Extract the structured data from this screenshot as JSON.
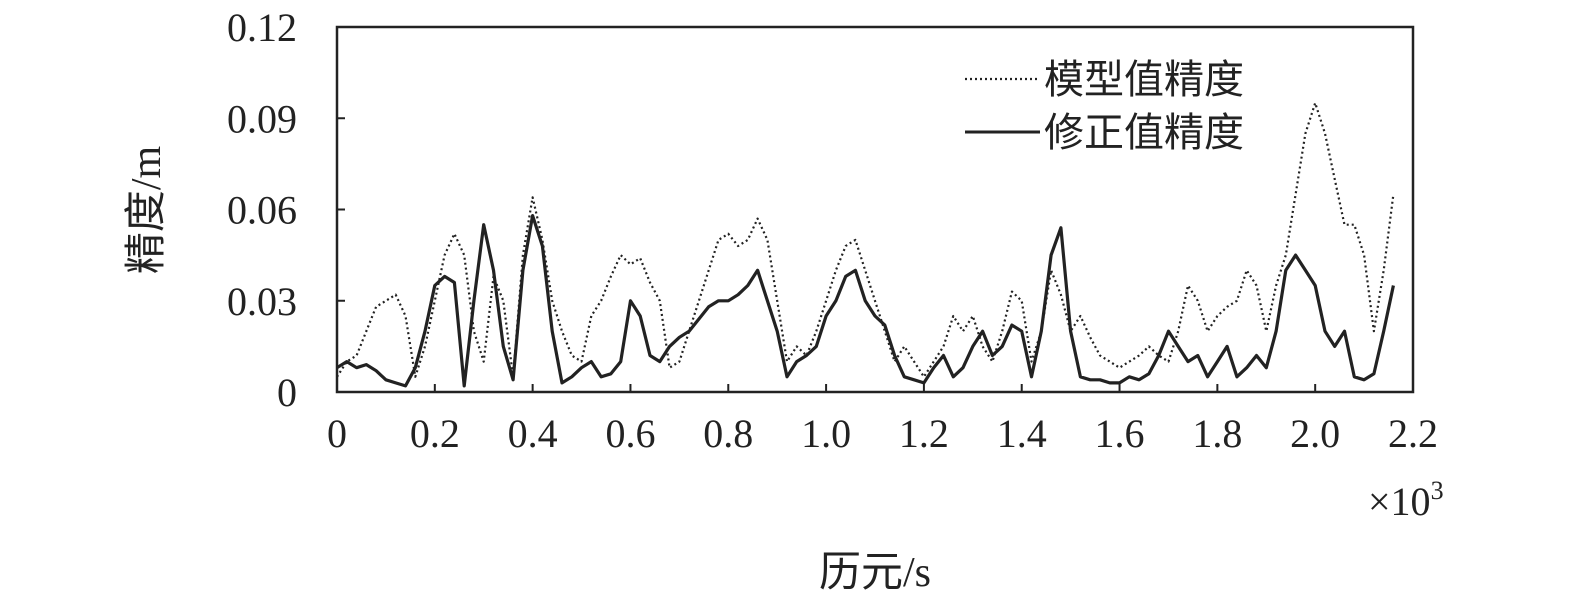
{
  "chart_data": {
    "type": "line",
    "title": "",
    "xlabel": "历元/s",
    "ylabel": "精度/m",
    "x_multiplier_label": "×10",
    "x_multiplier_exponent": "3",
    "xlim": [
      0,
      2.2
    ],
    "ylim": [
      0,
      0.12
    ],
    "x_ticks": [
      "0",
      "0.2",
      "0.4",
      "0.6",
      "0.8",
      "1.0",
      "1.2",
      "1.4",
      "1.6",
      "1.8",
      "2.0",
      "2.2"
    ],
    "y_ticks": [
      "0",
      "0.03",
      "0.06",
      "0.09",
      "0.12"
    ],
    "grid": false,
    "legend_position": "top-right",
    "x": [
      0,
      0.02,
      0.04,
      0.06,
      0.08,
      0.1,
      0.12,
      0.14,
      0.16,
      0.18,
      0.2,
      0.22,
      0.24,
      0.26,
      0.28,
      0.3,
      0.32,
      0.34,
      0.36,
      0.38,
      0.4,
      0.42,
      0.44,
      0.46,
      0.48,
      0.5,
      0.52,
      0.54,
      0.56,
      0.58,
      0.6,
      0.62,
      0.64,
      0.66,
      0.68,
      0.7,
      0.72,
      0.74,
      0.76,
      0.78,
      0.8,
      0.82,
      0.84,
      0.86,
      0.88,
      0.9,
      0.92,
      0.94,
      0.96,
      0.98,
      1.0,
      1.02,
      1.04,
      1.06,
      1.08,
      1.1,
      1.12,
      1.14,
      1.16,
      1.18,
      1.2,
      1.22,
      1.24,
      1.26,
      1.28,
      1.3,
      1.32,
      1.34,
      1.36,
      1.38,
      1.4,
      1.42,
      1.44,
      1.46,
      1.48,
      1.5,
      1.52,
      1.54,
      1.56,
      1.58,
      1.6,
      1.62,
      1.64,
      1.66,
      1.68,
      1.7,
      1.72,
      1.74,
      1.76,
      1.78,
      1.8,
      1.82,
      1.84,
      1.86,
      1.88,
      1.9,
      1.92,
      1.94,
      1.96,
      1.98,
      2.0,
      2.02,
      2.04,
      2.06,
      2.08,
      2.1,
      2.12,
      2.14,
      2.16
    ],
    "series": [
      {
        "name": "模型值精度",
        "style": "dotted",
        "color": "#222222",
        "values": [
          0.005,
          0.01,
          0.012,
          0.02,
          0.028,
          0.03,
          0.032,
          0.025,
          0.005,
          0.015,
          0.03,
          0.045,
          0.052,
          0.045,
          0.02,
          0.01,
          0.038,
          0.03,
          0.005,
          0.045,
          0.064,
          0.05,
          0.03,
          0.02,
          0.012,
          0.01,
          0.025,
          0.03,
          0.038,
          0.045,
          0.042,
          0.044,
          0.036,
          0.03,
          0.008,
          0.01,
          0.02,
          0.03,
          0.04,
          0.05,
          0.052,
          0.048,
          0.05,
          0.057,
          0.05,
          0.03,
          0.01,
          0.015,
          0.012,
          0.02,
          0.03,
          0.04,
          0.048,
          0.05,
          0.04,
          0.03,
          0.02,
          0.01,
          0.015,
          0.01,
          0.005,
          0.01,
          0.015,
          0.025,
          0.02,
          0.025,
          0.015,
          0.01,
          0.02,
          0.033,
          0.03,
          0.01,
          0.02,
          0.04,
          0.032,
          0.02,
          0.025,
          0.018,
          0.012,
          0.01,
          0.008,
          0.01,
          0.012,
          0.015,
          0.012,
          0.01,
          0.02,
          0.035,
          0.03,
          0.02,
          0.025,
          0.028,
          0.03,
          0.04,
          0.035,
          0.02,
          0.035,
          0.045,
          0.065,
          0.085,
          0.095,
          0.085,
          0.07,
          0.055,
          0.055,
          0.045,
          0.02,
          0.04,
          0.065
        ]
      },
      {
        "name": "修正值精度",
        "style": "solid",
        "color": "#222222",
        "values": [
          0.008,
          0.01,
          0.008,
          0.009,
          0.007,
          0.004,
          0.003,
          0.002,
          0.008,
          0.02,
          0.035,
          0.038,
          0.036,
          0.002,
          0.03,
          0.055,
          0.04,
          0.015,
          0.004,
          0.04,
          0.058,
          0.048,
          0.02,
          0.003,
          0.005,
          0.008,
          0.01,
          0.005,
          0.006,
          0.01,
          0.03,
          0.025,
          0.012,
          0.01,
          0.015,
          0.018,
          0.02,
          0.024,
          0.028,
          0.03,
          0.03,
          0.032,
          0.035,
          0.04,
          0.03,
          0.02,
          0.005,
          0.01,
          0.012,
          0.015,
          0.025,
          0.03,
          0.038,
          0.04,
          0.03,
          0.025,
          0.022,
          0.012,
          0.005,
          0.004,
          0.003,
          0.008,
          0.012,
          0.005,
          0.008,
          0.015,
          0.02,
          0.012,
          0.015,
          0.022,
          0.02,
          0.005,
          0.02,
          0.045,
          0.054,
          0.02,
          0.005,
          0.004,
          0.004,
          0.003,
          0.003,
          0.005,
          0.004,
          0.006,
          0.012,
          0.02,
          0.015,
          0.01,
          0.012,
          0.005,
          0.01,
          0.015,
          0.005,
          0.008,
          0.012,
          0.008,
          0.02,
          0.04,
          0.045,
          0.04,
          0.035,
          0.02,
          0.015,
          0.02,
          0.005,
          0.004,
          0.006,
          0.02,
          0.035
        ]
      }
    ]
  }
}
